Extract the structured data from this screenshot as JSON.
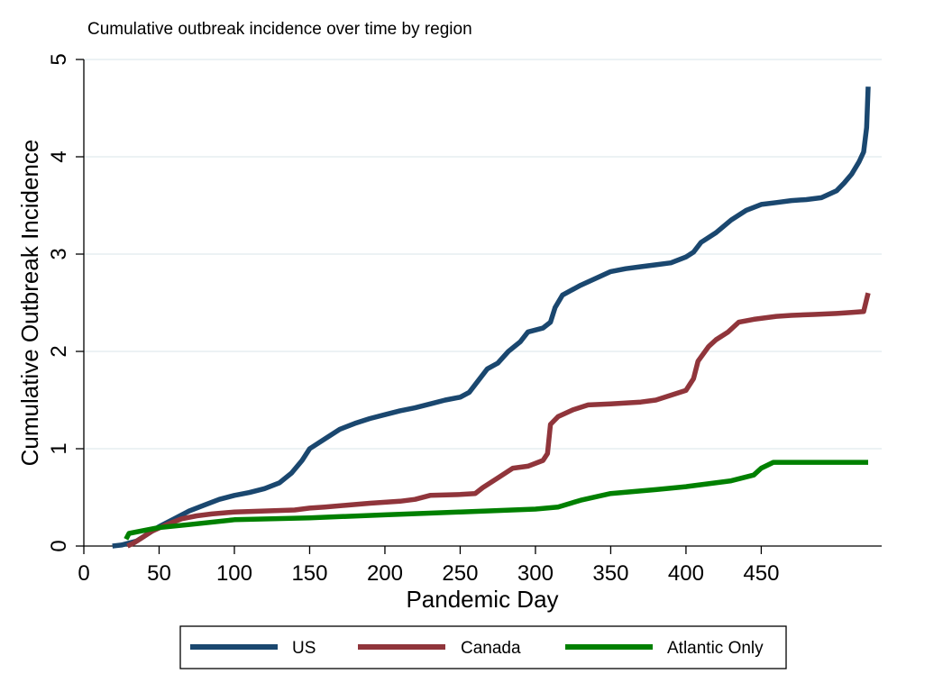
{
  "chart_data": {
    "type": "line",
    "title": "Cumulative outbreak incidence over time by region",
    "xlabel": "Pandemic Day",
    "ylabel": "Cumulative Outbreak Incidence",
    "xlim": [
      0,
      530
    ],
    "ylim": [
      0,
      5
    ],
    "x_ticks": [
      0,
      50,
      100,
      150,
      200,
      250,
      300,
      350,
      400,
      450
    ],
    "x_tick_labels": [
      "0",
      "50",
      "100",
      "150",
      "200",
      "250",
      "300",
      "350",
      "400",
      "450"
    ],
    "y_ticks": [
      0,
      1,
      2,
      3,
      4,
      5
    ],
    "y_tick_labels": [
      "0",
      "1",
      "2",
      "3",
      "4",
      "5"
    ],
    "grid": "horizontal",
    "legend_position": "bottom",
    "series": [
      {
        "name": "US",
        "color": "#1a476f",
        "points": [
          [
            19,
            0
          ],
          [
            25,
            0.01
          ],
          [
            35,
            0.05
          ],
          [
            40,
            0.1
          ],
          [
            50,
            0.2
          ],
          [
            60,
            0.28
          ],
          [
            70,
            0.36
          ],
          [
            80,
            0.42
          ],
          [
            90,
            0.48
          ],
          [
            100,
            0.52
          ],
          [
            110,
            0.55
          ],
          [
            120,
            0.59
          ],
          [
            130,
            0.65
          ],
          [
            138,
            0.75
          ],
          [
            145,
            0.88
          ],
          [
            150,
            1.0
          ],
          [
            160,
            1.1
          ],
          [
            170,
            1.2
          ],
          [
            180,
            1.26
          ],
          [
            190,
            1.31
          ],
          [
            200,
            1.35
          ],
          [
            210,
            1.39
          ],
          [
            220,
            1.42
          ],
          [
            230,
            1.46
          ],
          [
            240,
            1.5
          ],
          [
            250,
            1.53
          ],
          [
            256,
            1.58
          ],
          [
            262,
            1.7
          ],
          [
            268,
            1.82
          ],
          [
            275,
            1.88
          ],
          [
            282,
            2.0
          ],
          [
            290,
            2.1
          ],
          [
            295,
            2.2
          ],
          [
            305,
            2.24
          ],
          [
            310,
            2.3
          ],
          [
            313,
            2.45
          ],
          [
            318,
            2.58
          ],
          [
            330,
            2.68
          ],
          [
            340,
            2.75
          ],
          [
            350,
            2.82
          ],
          [
            360,
            2.85
          ],
          [
            370,
            2.87
          ],
          [
            380,
            2.89
          ],
          [
            390,
            2.91
          ],
          [
            400,
            2.97
          ],
          [
            405,
            3.02
          ],
          [
            410,
            3.12
          ],
          [
            420,
            3.22
          ],
          [
            430,
            3.35
          ],
          [
            440,
            3.45
          ],
          [
            450,
            3.51
          ],
          [
            460,
            3.53
          ],
          [
            470,
            3.55
          ],
          [
            480,
            3.56
          ],
          [
            490,
            3.58
          ],
          [
            500,
            3.65
          ],
          [
            505,
            3.73
          ],
          [
            510,
            3.82
          ],
          [
            515,
            3.95
          ],
          [
            518,
            4.05
          ],
          [
            520,
            4.3
          ],
          [
            521,
            4.72
          ]
        ]
      },
      {
        "name": "Canada",
        "color": "#90353b",
        "points": [
          [
            29,
            0
          ],
          [
            33,
            0.03
          ],
          [
            38,
            0.08
          ],
          [
            45,
            0.15
          ],
          [
            55,
            0.22
          ],
          [
            65,
            0.28
          ],
          [
            75,
            0.31
          ],
          [
            85,
            0.33
          ],
          [
            100,
            0.35
          ],
          [
            120,
            0.36
          ],
          [
            140,
            0.37
          ],
          [
            150,
            0.39
          ],
          [
            160,
            0.4
          ],
          [
            175,
            0.42
          ],
          [
            190,
            0.44
          ],
          [
            210,
            0.46
          ],
          [
            220,
            0.48
          ],
          [
            230,
            0.52
          ],
          [
            250,
            0.53
          ],
          [
            260,
            0.54
          ],
          [
            265,
            0.6
          ],
          [
            275,
            0.7
          ],
          [
            285,
            0.8
          ],
          [
            295,
            0.82
          ],
          [
            305,
            0.88
          ],
          [
            308,
            0.95
          ],
          [
            310,
            1.25
          ],
          [
            315,
            1.33
          ],
          [
            325,
            1.4
          ],
          [
            335,
            1.45
          ],
          [
            350,
            1.46
          ],
          [
            370,
            1.48
          ],
          [
            380,
            1.5
          ],
          [
            390,
            1.55
          ],
          [
            400,
            1.6
          ],
          [
            405,
            1.72
          ],
          [
            408,
            1.9
          ],
          [
            415,
            2.05
          ],
          [
            420,
            2.12
          ],
          [
            428,
            2.2
          ],
          [
            435,
            2.3
          ],
          [
            445,
            2.33
          ],
          [
            460,
            2.36
          ],
          [
            470,
            2.37
          ],
          [
            485,
            2.38
          ],
          [
            500,
            2.39
          ],
          [
            510,
            2.4
          ],
          [
            518,
            2.41
          ],
          [
            521,
            2.6
          ]
        ]
      },
      {
        "name": "Atlantic Only",
        "color": "#008000",
        "points": [
          [
            28,
            0.07
          ],
          [
            30,
            0.13
          ],
          [
            40,
            0.16
          ],
          [
            50,
            0.19
          ],
          [
            70,
            0.22
          ],
          [
            100,
            0.27
          ],
          [
            150,
            0.29
          ],
          [
            200,
            0.32
          ],
          [
            250,
            0.35
          ],
          [
            300,
            0.38
          ],
          [
            315,
            0.4
          ],
          [
            330,
            0.47
          ],
          [
            350,
            0.54
          ],
          [
            380,
            0.58
          ],
          [
            400,
            0.61
          ],
          [
            430,
            0.67
          ],
          [
            445,
            0.73
          ],
          [
            450,
            0.8
          ],
          [
            458,
            0.86
          ],
          [
            470,
            0.86
          ],
          [
            500,
            0.86
          ],
          [
            521,
            0.86
          ]
        ]
      }
    ]
  }
}
